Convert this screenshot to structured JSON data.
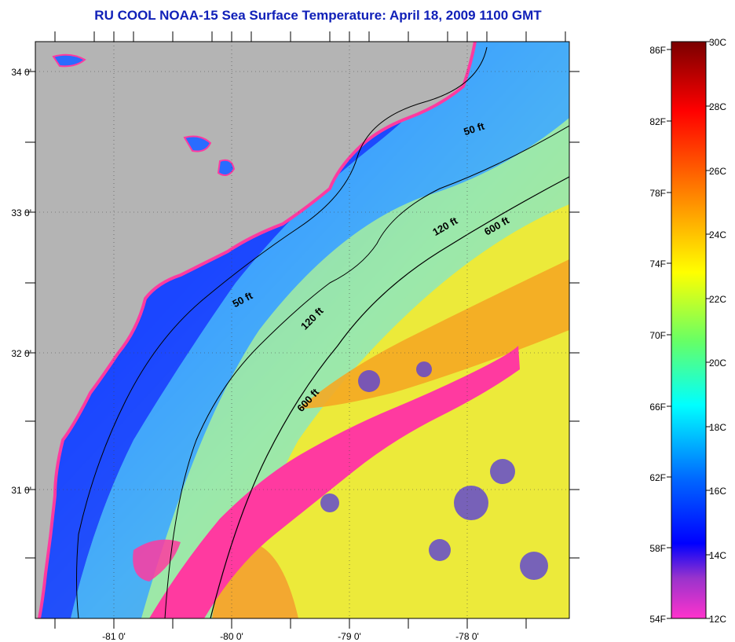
{
  "title": "RU COOL  NOAA-15  Sea Surface Temperature:  April 18, 2009 1100 GMT",
  "map": {
    "lat_labels": [
      "34 0'",
      "33 0'",
      "32 0'",
      "31 0'"
    ],
    "lon_labels": [
      "-81 0'",
      "-80 0'",
      "-79 0'",
      "-78 0'"
    ],
    "contour_labels": [
      "50 ft",
      "50 ft",
      "120 ft",
      "120 ft",
      "600 ft",
      "600 ft"
    ],
    "colors": {
      "land": "#b4b4b4",
      "coast_water": "#1e3cff",
      "mid_water": "#3aa0ff",
      "shelf_water": "#9be7a0",
      "warm_water": "#f0e020",
      "gulf_stream": "#f5a020",
      "cloud_flag": "#ff3aa0"
    }
  },
  "colorbar": {
    "fahrenheit_labels": [
      "86F",
      "82F",
      "78F",
      "74F",
      "70F",
      "66F",
      "62F",
      "58F",
      "54F"
    ],
    "celsius_labels": [
      "30C",
      "28C",
      "26C",
      "24C",
      "22C",
      "20C",
      "18C",
      "16C",
      "14C",
      "12C"
    ],
    "gradient_colors": [
      "#7a0000",
      "#ff0000",
      "#ff8800",
      "#ffff00",
      "#66ff66",
      "#00ffff",
      "#0066ff",
      "#0000ff",
      "#9933cc",
      "#ff33cc"
    ]
  }
}
